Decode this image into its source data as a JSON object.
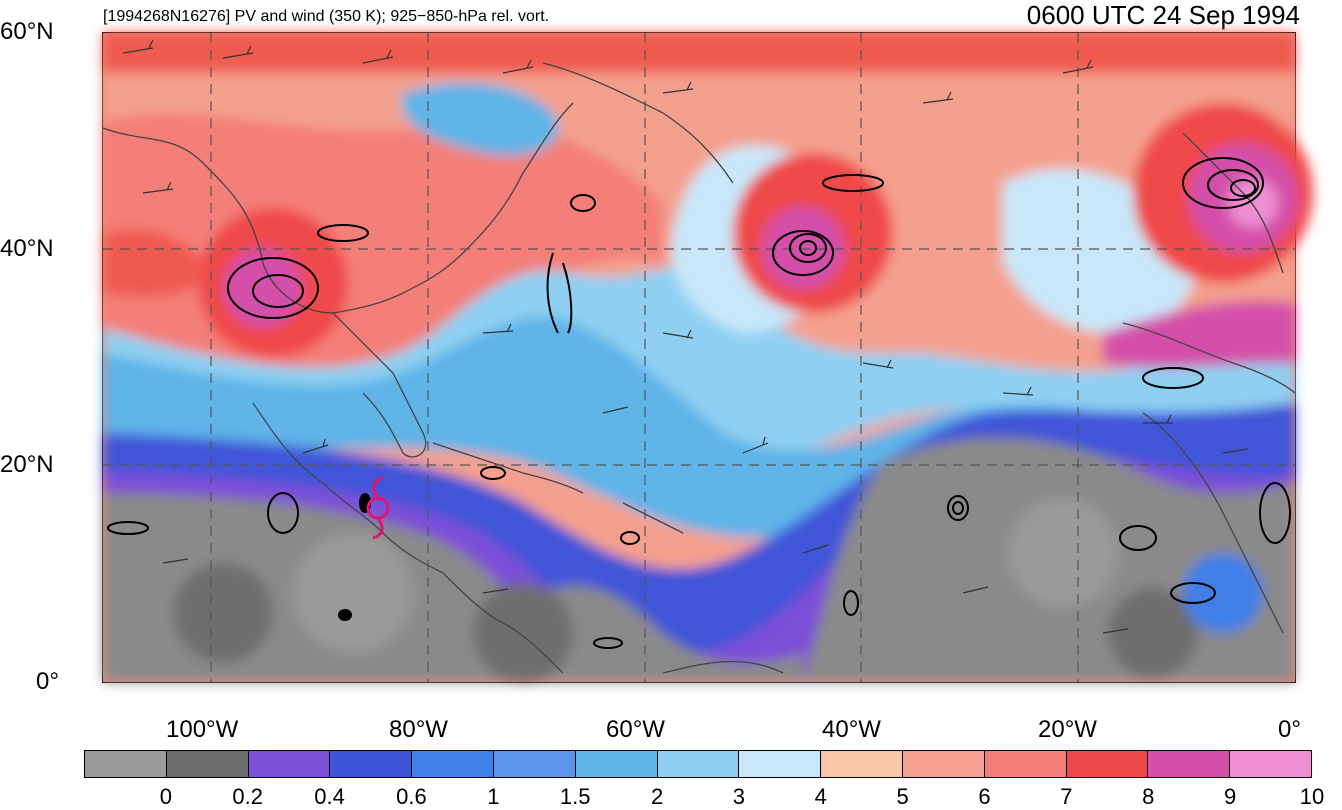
{
  "title": "[1994268N16276] PV and wind (350 K); 925−850-hPa rel. vort.",
  "time": "0600 UTC 24 Sep 1994",
  "lat_labels": [
    "60°N",
    "40°N",
    "20°N",
    "0°"
  ],
  "lon_labels": [
    "100°W",
    "80°W",
    "60°W",
    "40°W",
    "20°W",
    "0°"
  ],
  "colorbar": {
    "labels": [
      "0",
      "0.2",
      "0.4",
      "0.6",
      "1",
      "1.5",
      "2",
      "3",
      "4",
      "5",
      "6",
      "7",
      "8",
      "9",
      "10"
    ],
    "colors": [
      "#9a9a9a",
      "#6e6e6e",
      "#7b4fd8",
      "#3f55d8",
      "#3f7fe8",
      "#5f94ec",
      "#5fb4e8",
      "#8fd0f2",
      "#c8e8fa",
      "#f7c7a8",
      "#f6a191",
      "#f47f78",
      "#ef4848",
      "#d44fa9",
      "#ef8fd3"
    ]
  },
  "colors": {
    "storm_symbol": "#e0156f"
  }
}
